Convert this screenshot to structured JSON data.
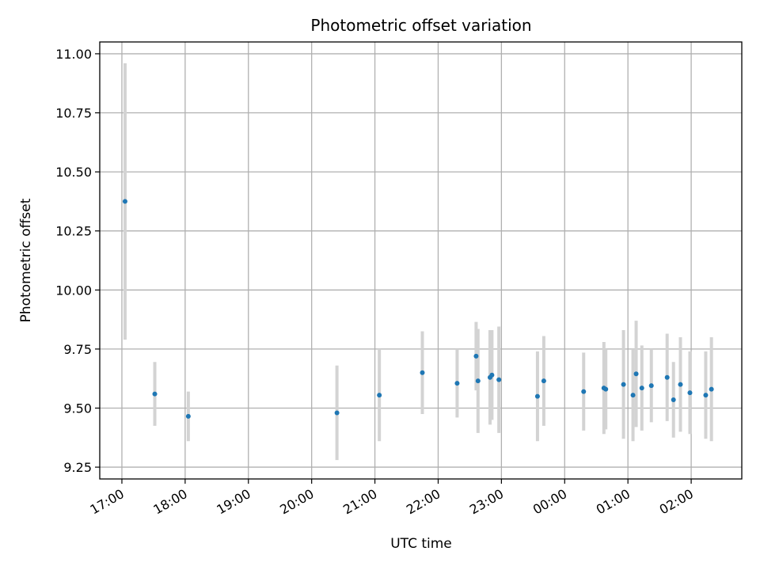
{
  "chart_data": {
    "type": "scatter",
    "title": "Photometric offset variation",
    "xlabel": "UTC time",
    "ylabel": "Photometric offset",
    "x_unit": "hours (UTC, continuing past midnight)",
    "xlim": [
      16.65,
      26.8
    ],
    "ylim": [
      9.2,
      11.05
    ],
    "grid": true,
    "x_ticks": [
      {
        "value": 17,
        "label": "17:00"
      },
      {
        "value": 18,
        "label": "18:00"
      },
      {
        "value": 19,
        "label": "19:00"
      },
      {
        "value": 20,
        "label": "20:00"
      },
      {
        "value": 21,
        "label": "21:00"
      },
      {
        "value": 22,
        "label": "22:00"
      },
      {
        "value": 23,
        "label": "23:00"
      },
      {
        "value": 24,
        "label": "00:00"
      },
      {
        "value": 25,
        "label": "01:00"
      },
      {
        "value": 26,
        "label": "02:00"
      }
    ],
    "y_ticks": [
      {
        "value": 9.25,
        "label": "9.25"
      },
      {
        "value": 9.5,
        "label": "9.50"
      },
      {
        "value": 9.75,
        "label": "9.75"
      },
      {
        "value": 10.0,
        "label": "10.00"
      },
      {
        "value": 10.25,
        "label": "10.25"
      },
      {
        "value": 10.5,
        "label": "10.50"
      },
      {
        "value": 10.75,
        "label": "10.75"
      },
      {
        "value": 11.0,
        "label": "11.00"
      }
    ],
    "point_color": "#1f77b4",
    "errorbar_color": "#d3d3d3",
    "points": [
      {
        "x": 17.05,
        "y": 10.375,
        "err": 0.585
      },
      {
        "x": 17.52,
        "y": 9.56,
        "err": 0.135
      },
      {
        "x": 18.05,
        "y": 9.465,
        "err": 0.105
      },
      {
        "x": 20.4,
        "y": 9.48,
        "err": 0.2
      },
      {
        "x": 21.07,
        "y": 9.555,
        "err": 0.195
      },
      {
        "x": 21.75,
        "y": 9.65,
        "err": 0.175
      },
      {
        "x": 22.3,
        "y": 9.605,
        "err": 0.145
      },
      {
        "x": 22.6,
        "y": 9.72,
        "err": 0.145
      },
      {
        "x": 22.63,
        "y": 9.615,
        "err": 0.22
      },
      {
        "x": 22.82,
        "y": 9.63,
        "err": 0.2
      },
      {
        "x": 22.85,
        "y": 9.64,
        "err": 0.19
      },
      {
        "x": 22.96,
        "y": 9.62,
        "err": 0.225
      },
      {
        "x": 23.57,
        "y": 9.55,
        "err": 0.19
      },
      {
        "x": 23.67,
        "y": 9.615,
        "err": 0.19
      },
      {
        "x": 24.3,
        "y": 9.57,
        "err": 0.165
      },
      {
        "x": 24.62,
        "y": 9.585,
        "err": 0.195
      },
      {
        "x": 24.65,
        "y": 9.58,
        "err": 0.17
      },
      {
        "x": 24.93,
        "y": 9.6,
        "err": 0.23
      },
      {
        "x": 25.08,
        "y": 9.555,
        "err": 0.195
      },
      {
        "x": 25.13,
        "y": 9.645,
        "err": 0.225
      },
      {
        "x": 25.22,
        "y": 9.585,
        "err": 0.18
      },
      {
        "x": 25.37,
        "y": 9.595,
        "err": 0.155
      },
      {
        "x": 25.62,
        "y": 9.63,
        "err": 0.185
      },
      {
        "x": 25.72,
        "y": 9.535,
        "err": 0.16
      },
      {
        "x": 25.83,
        "y": 9.6,
        "err": 0.2
      },
      {
        "x": 25.98,
        "y": 9.565,
        "err": 0.175
      },
      {
        "x": 26.23,
        "y": 9.555,
        "err": 0.185
      },
      {
        "x": 26.32,
        "y": 9.58,
        "err": 0.22
      }
    ]
  }
}
